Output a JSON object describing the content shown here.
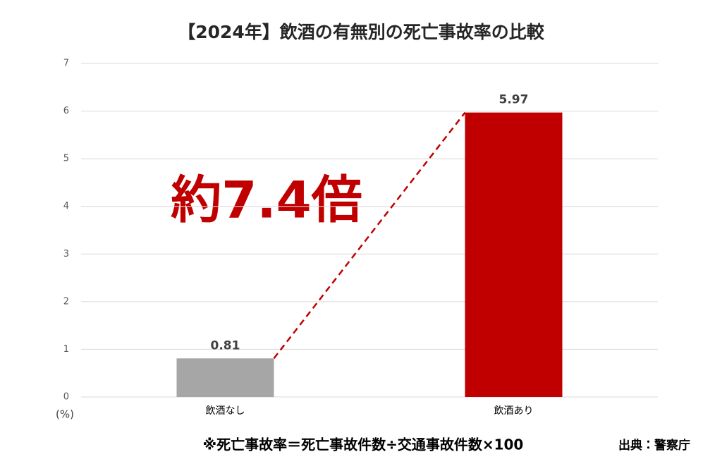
{
  "chart_data": {
    "type": "bar",
    "title": "【2024年】飲酒の有無別の死亡事故率の比較",
    "y_unit_label": "(%)",
    "categories": [
      "飲酒なし",
      "飲酒あり"
    ],
    "values": [
      0.81,
      5.97
    ],
    "colors": [
      "#a6a6a6",
      "#c00000"
    ],
    "ylim": [
      0,
      7
    ],
    "yticks": [
      0,
      1,
      2,
      3,
      4,
      5,
      6,
      7
    ],
    "grid": true,
    "annotation": "約7.4倍",
    "footnote": "※死亡事故率＝死亡事故件数÷交通事故件数×100",
    "source": "出典：警察庁"
  }
}
